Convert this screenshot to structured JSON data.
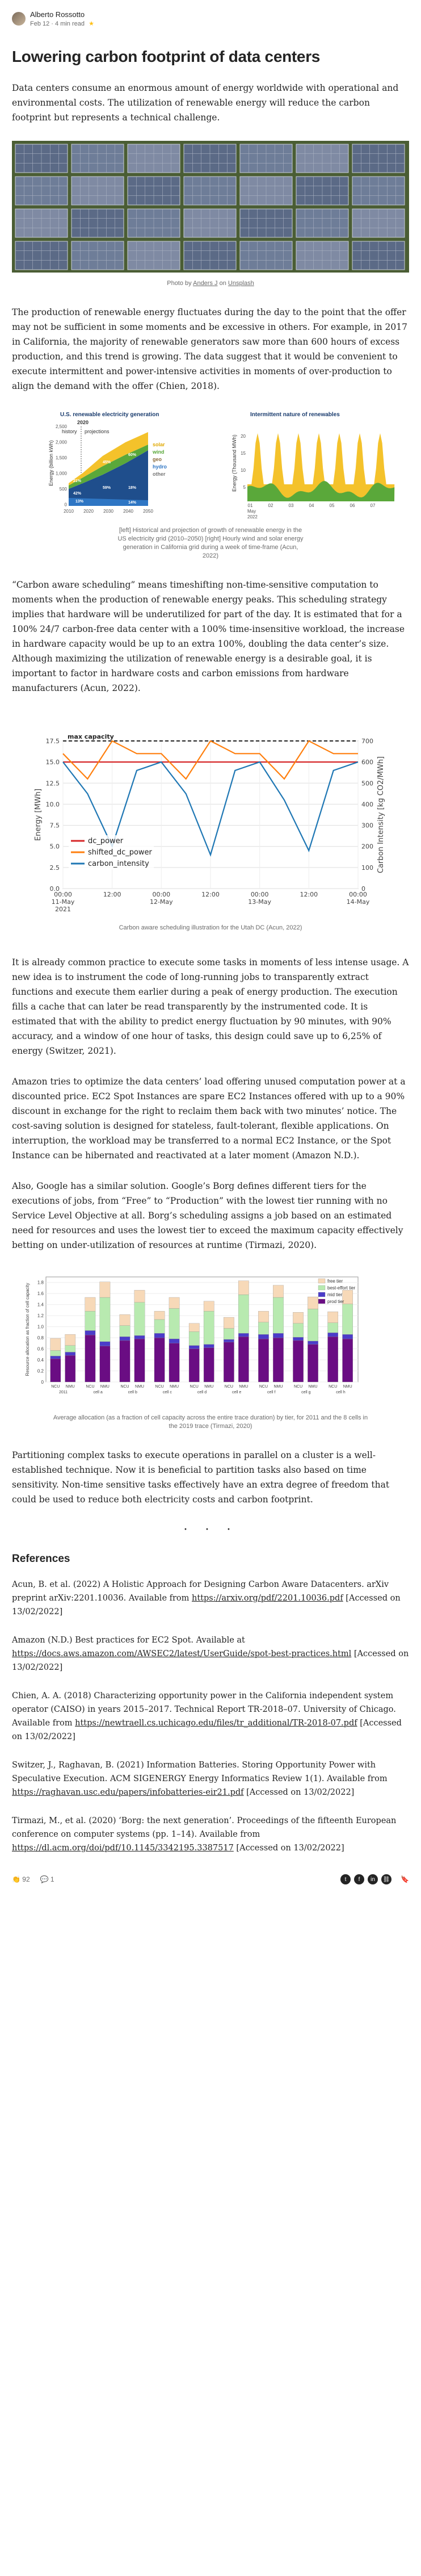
{
  "author": {
    "name": "Alberto Rossotto",
    "date": "Feb 12",
    "read_time": "4 min read",
    "star": "★"
  },
  "title": "Lowering carbon footprint of data centers",
  "para1": "Data centers consume an enormous amount of energy worldwide with operational and environmental costs. The utilization of renewable energy will reduce the carbon footprint but represents a technical challenge.",
  "photo_credit": {
    "prefix": "Photo by ",
    "author": "Anders J",
    "mid": " on ",
    "site": "Unsplash"
  },
  "para2": "The production of renewable energy fluctuates during the day to the point that the offer may not be sufficient in some moments and be excessive in others. For example, in 2017 in California, the majority of renewable generators saw more than 600 hours of excess production, and this trend is growing. The data suggest that it would be convenient to execute intermittent and power-intensive activities in moments of over-production to align the demand with the offer (Chien, 2018).",
  "fig2": {
    "left_title": "U.S. renewable electricity generation",
    "left_sub": "2020",
    "left_ylabel": "Energy (billion kWh)",
    "left_yticks": [
      "2,500",
      "2,000",
      "1,500",
      "1,000",
      "500",
      "0"
    ],
    "left_xticks": [
      "2010",
      "2020",
      "2030",
      "2040",
      "2050"
    ],
    "history": "history",
    "projections": "projections",
    "pcts": [
      "21%",
      "42%",
      "45%",
      "60%",
      "59%",
      "18%",
      "13%",
      "14%"
    ],
    "legend": [
      "solar",
      "wind",
      "geo",
      "hydro",
      "other"
    ],
    "right_title": "Intermittent nature of renewables",
    "right_ylabel": "Energy (Thousand MWh)",
    "right_yticks": [
      "20",
      "15",
      "10",
      "5"
    ],
    "right_xticks": [
      "01",
      "02",
      "03",
      "04",
      "05",
      "06",
      "07"
    ],
    "right_xsub": [
      "May",
      "2022"
    ],
    "caption": "[left] Historical and projection of growth of renewable energy in the US electricity grid (2010–2050) [right] Hourly wind and solar energy generation in California grid during a week of time-frame (Acun, 2022)"
  },
  "para3": "“Carbon aware scheduling” means timeshifting non-time-sensitive computation to moments when the production of renewable energy peaks. This scheduling strategy implies that hardware will be underutilized for part of the day. It is estimated that for a 100% 24/7 carbon-free data center with a 100% time-insensitive workload, the increase in hardware capacity would be up to an extra 100%, doubling the data center’s size. Although maximizing the utilization of renewable energy is a desirable goal, it is important to factor in hardware costs and carbon emissions from hardware manufacturers (Acun, 2022).",
  "chart_data": {
    "type": "line",
    "title": "",
    "annotation": "max capacity",
    "xlabel": "Date",
    "ylabel": "Energy [MWh]",
    "y2label": "Carbon Intensity [kg CO2/MWh]",
    "ylim": [
      0,
      17.5
    ],
    "y2lim": [
      0,
      700
    ],
    "yticks": [
      "0.0",
      "2.5",
      "5.0",
      "7.5",
      "10.0",
      "12.5",
      "15.0",
      "17.5"
    ],
    "y2ticks": [
      "0",
      "100",
      "200",
      "300",
      "400",
      "500",
      "600",
      "700"
    ],
    "xticks": [
      "00:00",
      "12:00",
      "00:00",
      "12:00",
      "00:00",
      "12:00",
      "00:00"
    ],
    "xdates": [
      [
        "11-May",
        "2021"
      ],
      [
        "12-May",
        ""
      ],
      [
        "13-May",
        ""
      ],
      [
        "14-May",
        ""
      ]
    ],
    "max_capacity": 17.5,
    "legend": [
      "dc_power",
      "shifted_dc_power",
      "carbon_intensity"
    ],
    "x_hours": [
      0,
      6,
      12,
      18,
      24,
      30,
      36,
      42,
      48,
      54,
      60,
      66,
      72
    ],
    "series": [
      {
        "name": "dc_power",
        "axis": "left",
        "values": [
          15.0,
          15.0,
          15.0,
          15.0,
          15.0,
          15.0,
          15.0,
          15.0,
          15.0,
          15.0,
          15.0,
          15.0,
          15.0
        ]
      },
      {
        "name": "shifted_dc_power",
        "axis": "left",
        "values": [
          16.0,
          13.0,
          17.5,
          16.0,
          16.0,
          13.0,
          17.5,
          16.0,
          16.0,
          13.0,
          17.5,
          16.0,
          16.0
        ]
      },
      {
        "name": "carbon_intensity",
        "axis": "right",
        "values": [
          600,
          450,
          200,
          560,
          600,
          450,
          160,
          560,
          600,
          420,
          180,
          560,
          600
        ]
      }
    ],
    "caption": "Carbon aware scheduling illustration for the Utah DC (Acun, 2022)"
  },
  "para4": "It is already common practice to execute some tasks in moments of less intense usage. A new idea is to instrument the code of long-running jobs to transparently extract functions and execute them earlier during a peak of energy production. The execution fills a cache that can later be read transparently by the instrumented code. It is estimated that with the ability to predict energy fluctuation by 90 minutes, with 90% accuracy, and a window of one hour of tasks, this design could save up to 6,25% of energy (Switzer, 2021).",
  "para5": "Amazon tries to optimize the data centers’ load offering unused computation power at a discounted price. EC2 Spot Instances are spare EC2 Instances offered with up to a 90% discount in exchange for the right to reclaim them back with two minutes’ notice. The cost-saving solution is designed for stateless, fault-tolerant, flexible applications. On interruption, the workload may be transferred to a normal EC2 Instance, or the Spot Instance can be hibernated and reactivated at a later moment (Amazon N.D.).",
  "para6": "Also, Google has a similar solution. Google’s Borg defines different tiers for the executions of jobs, from “Free” to “Production” with the lowest tier running with no Service Level Objective at all. Borg’s scheduling assigns a job based on an estimated need for resources and uses the lowest tier to exceed the maximum capacity effectively betting on under-utilization of resources at runtime (Tirmazi, 2020).",
  "fig4": {
    "ylabel": "Resource allocation as fraction of cell capacity",
    "yticks": [
      "0",
      "0.2",
      "0.4",
      "0.6",
      "0.8",
      "1.0",
      "1.2",
      "1.4",
      "1.6",
      "1.8"
    ],
    "legend": [
      "free tier",
      "best-effort tier",
      "mid tier",
      "prod tier"
    ],
    "groups": [
      "2011",
      "cell a",
      "cell b",
      "cell c",
      "cell d",
      "cell e",
      "cell f",
      "cell g",
      "cell h"
    ],
    "bar_labels": [
      "NCU",
      "NMU"
    ],
    "bars": [
      {
        "prod": 0.42,
        "mid": 0.05,
        "be": 0.1,
        "free": 0.22
      },
      {
        "prod": 0.48,
        "mid": 0.06,
        "be": 0.12,
        "free": 0.2
      },
      {
        "prod": 0.85,
        "mid": 0.08,
        "be": 0.35,
        "free": 0.25
      },
      {
        "prod": 0.65,
        "mid": 0.08,
        "be": 0.8,
        "free": 0.28
      },
      {
        "prod": 0.75,
        "mid": 0.07,
        "be": 0.2,
        "free": 0.2
      },
      {
        "prod": 0.78,
        "mid": 0.06,
        "be": 0.6,
        "free": 0.22
      },
      {
        "prod": 0.8,
        "mid": 0.08,
        "be": 0.25,
        "free": 0.15
      },
      {
        "prod": 0.7,
        "mid": 0.08,
        "be": 0.55,
        "free": 0.2
      },
      {
        "prod": 0.6,
        "mid": 0.06,
        "be": 0.25,
        "free": 0.15
      },
      {
        "prod": 0.62,
        "mid": 0.06,
        "be": 0.6,
        "free": 0.18
      },
      {
        "prod": 0.72,
        "mid": 0.05,
        "be": 0.2,
        "free": 0.2
      },
      {
        "prod": 0.82,
        "mid": 0.06,
        "be": 0.7,
        "free": 0.25
      },
      {
        "prod": 0.78,
        "mid": 0.08,
        "be": 0.22,
        "free": 0.2
      },
      {
        "prod": 0.8,
        "mid": 0.08,
        "be": 0.65,
        "free": 0.22
      },
      {
        "prod": 0.75,
        "mid": 0.06,
        "be": 0.25,
        "free": 0.2
      },
      {
        "prod": 0.68,
        "mid": 0.06,
        "be": 0.58,
        "free": 0.22
      },
      {
        "prod": 0.82,
        "mid": 0.07,
        "be": 0.18,
        "free": 0.2
      },
      {
        "prod": 0.78,
        "mid": 0.08,
        "be": 0.55,
        "free": 0.25
      }
    ],
    "caption": "Average allocation (as a fraction of cell capacity across the entire trace duration) by tier, for 2011 and the 8 cells in the 2019 trace (Tirmazi, 2020)"
  },
  "para7": "Partitioning complex tasks to execute operations in parallel on a cluster is a well-established technique. Now it is beneficial to partition tasks also based on time sensitivity. Non-time sensitive tasks effectively have an extra degree of freedom that could be used to reduce both electricity costs and carbon footprint.",
  "separator": "· · ·",
  "refs_title": "References",
  "refs": [
    {
      "text": "Acun, B. et al. (2022) A Holistic Approach for Designing Carbon Aware Datacenters. arXiv preprint arXiv:2201.10036. Available from ",
      "link": "https://arxiv.org/pdf/2201.10036.pdf",
      "tail": " [Accessed on 13/02/2022]"
    },
    {
      "text": "Amazon (N.D.) Best practices for EC2 Spot. Available at ",
      "link": "https://docs.aws.amazon.com/AWSEC2/latest/UserGuide/spot-best-practices.html",
      "tail": " [Accessed on 13/02/2022]"
    },
    {
      "text": "Chien, A. A. (2018) Characterizing opportunity power in the California independent system operator (CAISO) in years 2015–2017. Technical Report TR-2018–07. University of Chicago. Available from ",
      "link": "https://newtraell.cs.uchicago.edu/files/tr_additional/TR-2018-07.pdf",
      "tail": " [Accessed on 13/02/2022]"
    },
    {
      "text": "Switzer, J., Raghavan, B. (2021) Information Batteries. Storing Opportunity Power with Speculative Execution. ACM SIGENERGY Energy Informatics Review 1(1). Available from ",
      "link": "https://raghavan.usc.edu/papers/infobatteries-eir21.pdf",
      "tail": " [Accessed on 13/02/2022]"
    },
    {
      "text": "Tirmazi, M., et al. (2020) ‘Borg: the next generation’. Proceedings of the fifteenth European conference on computer systems (pp. 1–14). Available from ",
      "link": "https://dl.acm.org/doi/pdf/10.1145/3342195.3387517",
      "tail": " [Accessed on 13/02/2022]"
    }
  ],
  "footer": {
    "claps": "92",
    "comments": "1"
  },
  "colors": {
    "dc_power": "#d62728",
    "shifted": "#ff7f0e",
    "carbon": "#1f77b4",
    "prod": "#6a0d83",
    "mid": "#4b3cc9",
    "be": "#b8eab0",
    "free": "#f7d9b8"
  }
}
